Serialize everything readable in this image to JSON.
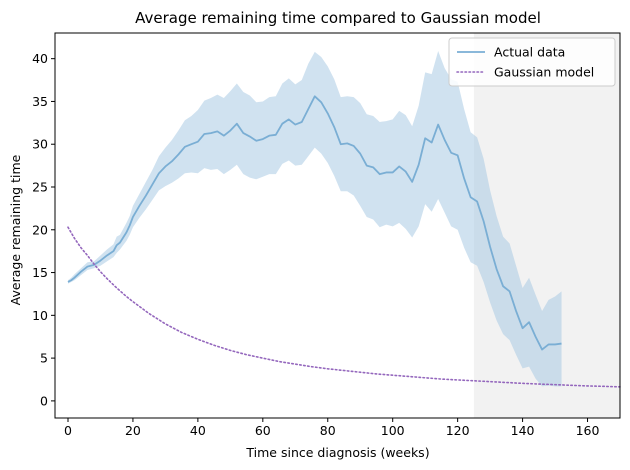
{
  "chart_data": {
    "type": "line",
    "title": "Average remaining time compared to Gaussian model",
    "xlabel": "Time since diagnosis (weeks)",
    "ylabel": "Average remaining time",
    "xlim": [
      -4,
      170
    ],
    "ylim": [
      -2,
      43
    ],
    "xticks": [
      0,
      20,
      40,
      60,
      80,
      100,
      120,
      140,
      160
    ],
    "yticks": [
      0,
      5,
      10,
      15,
      20,
      25,
      30,
      35,
      40
    ],
    "grid": false,
    "legend_position": "top-right",
    "shaded_region": {
      "x_start": 125,
      "x_end": 170,
      "color": "#f2f2f2"
    },
    "colors": {
      "actual": "#7aaed4",
      "band": "#a9cbe4",
      "gaussian": "#9467bd"
    },
    "series": [
      {
        "name": "Actual data",
        "style": "solid",
        "x": [
          0,
          1,
          2,
          4,
          6,
          8,
          10,
          12,
          14,
          15,
          16,
          18,
          19,
          20,
          22,
          24,
          26,
          28,
          30,
          32,
          34,
          36,
          38,
          40,
          42,
          44,
          46,
          48,
          50,
          52,
          54,
          56,
          58,
          60,
          62,
          64,
          66,
          68,
          70,
          72,
          74,
          76,
          78,
          80,
          82,
          84,
          86,
          88,
          90,
          92,
          94,
          96,
          98,
          100,
          102,
          104,
          106,
          108,
          110,
          112,
          114,
          116,
          118,
          120,
          122,
          124,
          126,
          128,
          130,
          132,
          134,
          136,
          138,
          140,
          142,
          144,
          146,
          148,
          150,
          152
        ],
        "y": [
          13.9,
          14.1,
          14.4,
          15.1,
          15.7,
          15.9,
          16.4,
          17.0,
          17.5,
          18.2,
          18.5,
          19.7,
          20.5,
          21.5,
          22.8,
          24.0,
          25.3,
          26.6,
          27.4,
          28.0,
          28.8,
          29.7,
          30.0,
          30.3,
          31.2,
          31.3,
          31.5,
          31.0,
          31.6,
          32.4,
          31.3,
          30.9,
          30.4,
          30.6,
          31.0,
          31.1,
          32.4,
          32.9,
          32.3,
          32.6,
          34.1,
          35.6,
          34.9,
          33.6,
          32.0,
          30.0,
          30.1,
          29.8,
          28.9,
          27.5,
          27.3,
          26.5,
          26.7,
          26.7,
          27.4,
          26.8,
          25.6,
          27.6,
          30.7,
          30.2,
          32.3,
          30.5,
          29.0,
          28.7,
          26.0,
          23.8,
          23.3,
          21.0,
          18.0,
          15.4,
          13.4,
          12.8,
          10.5,
          8.5,
          9.2,
          7.5,
          6.0,
          6.6,
          6.6,
          6.7
        ],
        "band_lower": [
          13.7,
          13.9,
          14.1,
          14.7,
          15.3,
          15.5,
          15.8,
          16.3,
          16.8,
          17.3,
          17.7,
          18.7,
          19.4,
          20.3,
          21.4,
          22.4,
          23.5,
          24.6,
          25.1,
          25.5,
          26.0,
          26.6,
          26.7,
          26.6,
          27.2,
          27.0,
          27.1,
          26.5,
          27.0,
          27.6,
          26.5,
          26.1,
          25.9,
          26.2,
          26.5,
          26.5,
          27.7,
          28.1,
          27.5,
          27.6,
          28.6,
          29.6,
          28.9,
          27.8,
          26.3,
          24.5,
          24.5,
          24.0,
          22.8,
          21.5,
          21.2,
          20.3,
          20.6,
          20.4,
          20.8,
          20.1,
          19.1,
          20.4,
          23.0,
          22.1,
          23.6,
          22.0,
          20.4,
          20.0,
          17.9,
          16.2,
          15.8,
          13.9,
          11.5,
          9.4,
          7.8,
          7.1,
          5.4,
          3.8,
          4.0,
          2.6,
          1.7,
          1.8,
          1.7,
          1.7
        ],
        "band_upper": [
          14.1,
          14.4,
          14.8,
          15.5,
          16.2,
          16.3,
          17.0,
          17.7,
          18.3,
          19.2,
          19.4,
          20.8,
          21.6,
          22.8,
          24.2,
          25.6,
          27.0,
          28.6,
          29.6,
          30.5,
          31.6,
          32.8,
          33.3,
          34.0,
          35.1,
          35.4,
          35.8,
          35.4,
          36.2,
          37.1,
          36.1,
          35.7,
          34.9,
          35.0,
          35.5,
          35.6,
          37.1,
          37.7,
          37.0,
          37.5,
          39.4,
          40.8,
          40.2,
          39.1,
          37.6,
          35.5,
          35.6,
          35.5,
          34.8,
          33.5,
          33.3,
          32.6,
          32.7,
          32.9,
          33.9,
          33.4,
          32.1,
          34.5,
          38.4,
          38.2,
          40.9,
          38.9,
          37.6,
          37.3,
          34.1,
          31.4,
          30.8,
          28.3,
          24.6,
          21.6,
          19.2,
          18.4,
          15.8,
          13.2,
          14.4,
          12.4,
          10.5,
          11.8,
          12.2,
          12.8
        ]
      },
      {
        "name": "Gaussian model",
        "style": "dotted",
        "x": [
          0,
          2,
          4,
          6,
          8,
          10,
          12,
          15,
          18,
          20,
          25,
          30,
          35,
          40,
          45,
          50,
          55,
          60,
          65,
          70,
          75,
          80,
          85,
          90,
          95,
          100,
          105,
          110,
          115,
          120,
          125,
          130,
          135,
          140,
          145,
          150,
          155,
          160,
          165,
          170
        ],
        "y": [
          20.3,
          19.0,
          17.9,
          17.0,
          16.0,
          15.1,
          14.3,
          13.2,
          12.2,
          11.6,
          10.2,
          9.0,
          8.0,
          7.2,
          6.5,
          5.9,
          5.4,
          5.0,
          4.6,
          4.3,
          4.0,
          3.75,
          3.55,
          3.35,
          3.15,
          3.0,
          2.85,
          2.7,
          2.55,
          2.45,
          2.35,
          2.25,
          2.15,
          2.05,
          1.97,
          1.9,
          1.82,
          1.75,
          1.7,
          1.64
        ]
      }
    ]
  }
}
